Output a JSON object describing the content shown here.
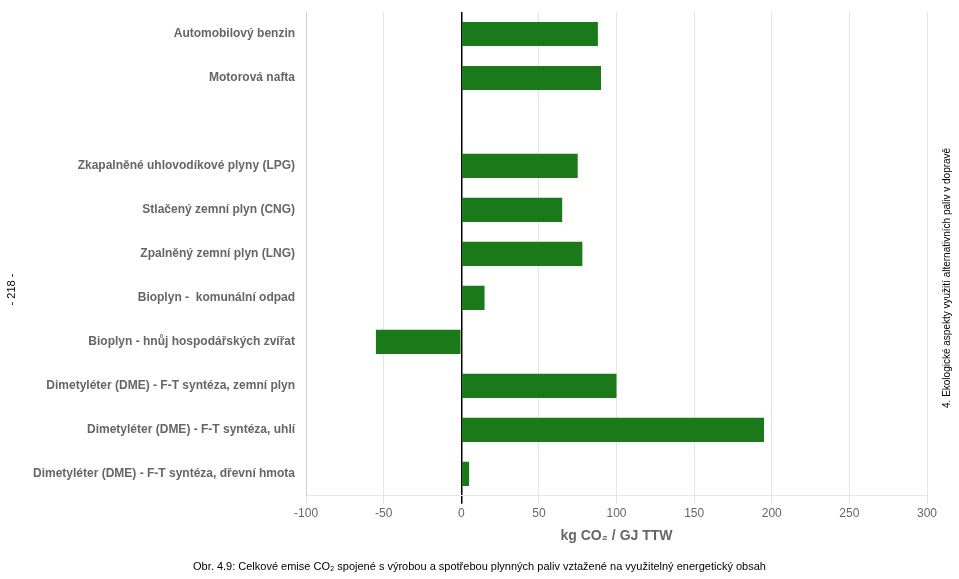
{
  "chart_data": {
    "type": "bar",
    "orientation": "horizontal",
    "categories": [
      "Dimetyléter (DME) - F-T syntéza, dřevní hmota",
      "Dimetyléter (DME) - F-T syntéza, uhlí",
      "Dimetyléter (DME) - F-T syntéza, zemní plyn",
      "Bioplyn - hnůj hospodářských zvířat",
      "Bioplyn -  komunální odpad",
      "Zpalněný zemní plyn (LNG)",
      "Stlačený zemní plyn (CNG)",
      "Zkapalněné uhlovodíkové plyny (LPG)",
      null,
      "Motorová nafta",
      "Automobilový benzin"
    ],
    "values": [
      5,
      195,
      100,
      -55,
      15,
      78,
      65,
      75,
      null,
      90,
      88
    ],
    "color": "#1a7a1a",
    "xlim": [
      -100,
      300
    ],
    "xticks": [
      -100,
      -50,
      0,
      50,
      100,
      150,
      200,
      250,
      300
    ],
    "xlabel": "kg CO₂ / GJ TTW",
    "caption": "Obr. 4.9: Celkové emise CO₂ spojené s výrobou a spotřebou plynných paliv vztažené na využitelný energetický obsah",
    "side_text": "4. Ekologické aspekty využití alternativních paliv v dopravě",
    "left_text": "- 218 -",
    "grid": true
  }
}
